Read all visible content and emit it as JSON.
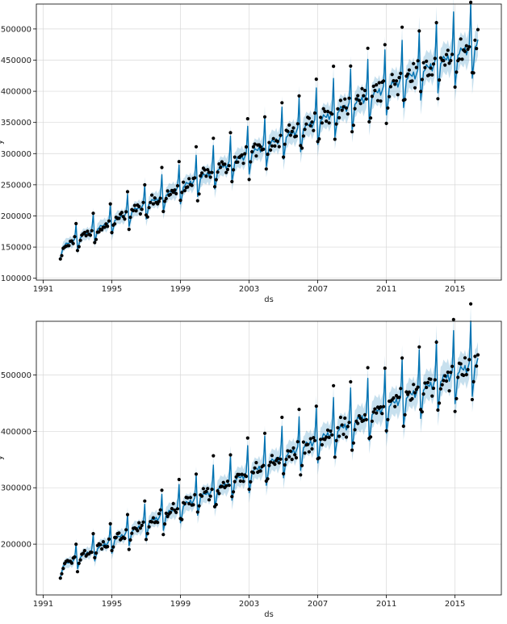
{
  "chart_data": [
    {
      "type": "line",
      "title": "",
      "xlabel": "ds",
      "ylabel": "y",
      "grid": true,
      "xlim": [
        1990.6,
        2017.7
      ],
      "ylim": [
        97000,
        540000
      ],
      "x_ticks": [
        1991,
        1995,
        1999,
        2003,
        2007,
        2011,
        2015
      ],
      "y_ticks": [
        100000,
        150000,
        200000,
        250000,
        300000,
        350000,
        400000,
        450000,
        500000
      ],
      "x_tick_labels": [
        "1991",
        "1995",
        "1999",
        "2003",
        "2007",
        "2011",
        "2015"
      ],
      "y_tick_labels": [
        "100000",
        "150000",
        "200000",
        "250000",
        "300000",
        "350000",
        "400000",
        "450000",
        "500000"
      ],
      "series": [
        {
          "name": "observed (points)",
          "start": 1992.0,
          "end": 2016.33,
          "trend_start": 148000,
          "trend_end": 472000,
          "color": "#000000"
        },
        {
          "name": "forecast yhat",
          "start": 1992.0,
          "end": 2016.33,
          "color": "#0072b2"
        },
        {
          "name": "uncertainty interval",
          "color": "#0072b2"
        }
      ]
    },
    {
      "type": "line",
      "title": "",
      "xlabel": "ds",
      "ylabel": "y",
      "grid": true,
      "xlim": [
        1990.6,
        2017.7
      ],
      "ylim": [
        110000,
        595000
      ],
      "x_ticks": [
        1991,
        1995,
        1999,
        2003,
        2007,
        2011,
        2015
      ],
      "y_ticks": [
        200000,
        300000,
        400000,
        500000
      ],
      "x_tick_labels": [
        "1991",
        "1995",
        "1999",
        "2003",
        "2007",
        "2011",
        "2015"
      ],
      "y_tick_labels": [
        "200000",
        "300000",
        "400000",
        "500000"
      ],
      "series": [
        {
          "name": "observed (points)",
          "start": 1992.0,
          "end": 2016.33,
          "trend_start": 158000,
          "trend_end": 518000,
          "color": "#000000"
        },
        {
          "name": "forecast yhat",
          "start": 1992.0,
          "end": 2016.33,
          "color": "#0072b2"
        },
        {
          "name": "uncertainty interval",
          "color": "#0072b2"
        }
      ]
    }
  ]
}
